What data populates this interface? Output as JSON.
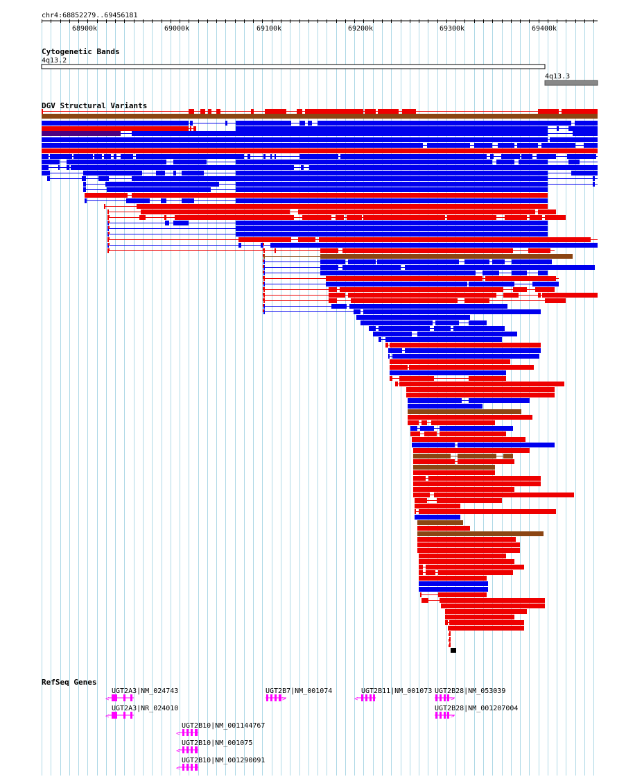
{
  "region": {
    "label": "chr4:68852279..69456181"
  },
  "ruler": {
    "ticks": [
      "68900k",
      "69000k",
      "69100k",
      "69200k",
      "69300k",
      "69400k"
    ]
  },
  "tracks": {
    "cytoband": {
      "title": "Cytogenetic Bands",
      "bands": [
        "4q13.2",
        "4q13.3"
      ]
    },
    "dgv": {
      "title": "DGV Structural Variants"
    },
    "refseq": {
      "title": "RefSeq Genes",
      "genes": [
        "UGT2A3|NM_024743",
        "UGT2A3|NR_024010",
        "UGT2B10|NM_001144767",
        "UGT2B10|NM_001075",
        "UGT2B10|NM_001290091",
        "UGT2B7|NM_001074",
        "UGT2B11|NM_001073",
        "UGT2B28|NM_053039",
        "UGT2B28|NM_001207004"
      ]
    }
  },
  "colors": {
    "loss": "#ee0000",
    "gain": "#0000ee",
    "both": "#8b4513",
    "inversion": "#4b0082",
    "other": "#000000",
    "gene": "#ff00ff",
    "grid": "#add8e6"
  }
}
